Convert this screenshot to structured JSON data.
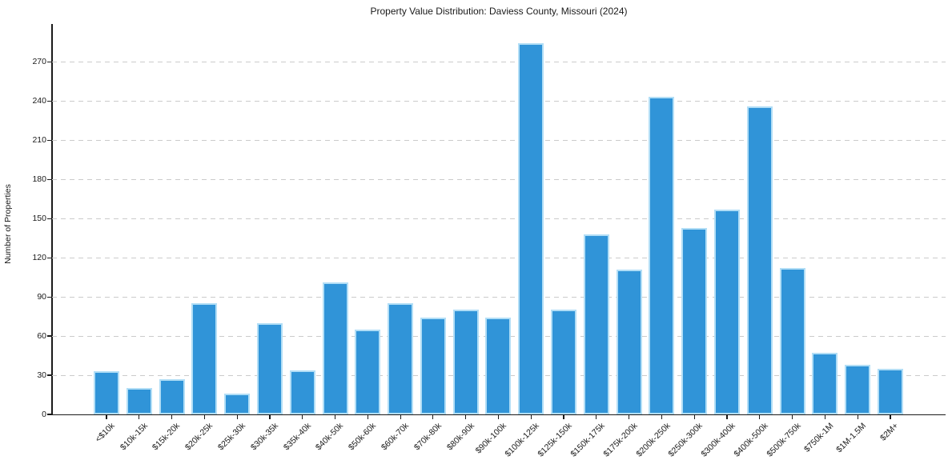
{
  "chart_data": {
    "type": "bar",
    "title": "Property Value Distribution: Daviess County, Missouri (2024)",
    "xlabel": "",
    "ylabel": "Number of Properties",
    "categories": [
      "<$10k",
      "$10k-15k",
      "$15k-20k",
      "$20k-25k",
      "$25k-30k",
      "$30k-35k",
      "$35k-40k",
      "$40k-50k",
      "$50k-60k",
      "$60k-70k",
      "$70k-80k",
      "$80k-90k",
      "$90k-100k",
      "$100k-125k",
      "$125k-150k",
      "$150k-175k",
      "$175k-200k",
      "$200k-250k",
      "$250k-300k",
      "$300k-400k",
      "$400k-500k",
      "$500k-750k",
      "$750k-1M",
      "$1M-1.5M",
      "$2M+"
    ],
    "values": [
      33,
      20,
      27,
      85,
      16,
      70,
      34,
      101,
      65,
      85,
      74,
      80,
      74,
      284,
      80,
      138,
      111,
      243,
      143,
      157,
      236,
      112,
      47,
      38,
      35
    ],
    "yticks": [
      0,
      30,
      60,
      90,
      120,
      150,
      180,
      210,
      240,
      270
    ],
    "ylim": [
      0,
      299
    ],
    "grid": "horizontal-dashed",
    "legend": "none",
    "bar_color": "#3094d8",
    "bar_edge_color": "#b2def6",
    "gridline_color": "#cbcbcb",
    "axis_color": "#1a1a1a"
  }
}
